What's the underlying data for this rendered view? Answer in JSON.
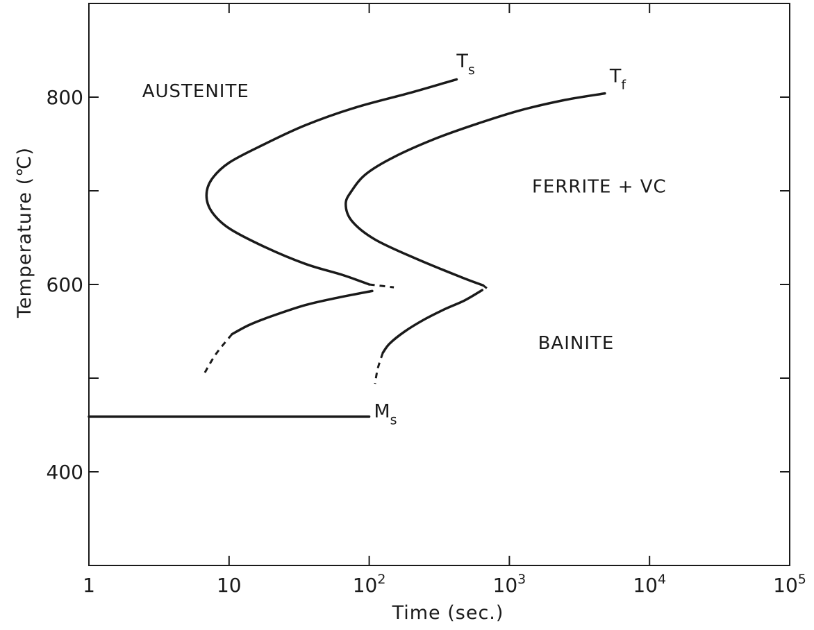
{
  "chart_data": {
    "type": "line",
    "xlabel": "Time (sec.)",
    "ylabel": "Temperature (℃)",
    "x_scale": "log",
    "xlim": [
      1,
      100000
    ],
    "ylim": [
      300,
      900
    ],
    "grid": false,
    "x_ticks": [
      {
        "value": 1,
        "base": "1",
        "exp": ""
      },
      {
        "value": 10,
        "base": "10",
        "exp": ""
      },
      {
        "value": 100,
        "base": "10",
        "exp": "2"
      },
      {
        "value": 1000,
        "base": "10",
        "exp": "3"
      },
      {
        "value": 10000,
        "base": "10",
        "exp": "4"
      },
      {
        "value": 100000,
        "base": "10",
        "exp": "5"
      }
    ],
    "y_ticks": [
      {
        "value": 400,
        "label": "400"
      },
      {
        "value": 500,
        "label": ""
      },
      {
        "value": 600,
        "label": "600"
      },
      {
        "value": 700,
        "label": ""
      },
      {
        "value": 800,
        "label": "800"
      }
    ],
    "region_labels": [
      {
        "text": "AUSTENITE",
        "x": 2.4,
        "y": 800
      },
      {
        "text": "FERRITE + VC",
        "x": 1450,
        "y": 698
      },
      {
        "text": "BAINITE",
        "x": 1600,
        "y": 531
      }
    ],
    "curve_labels": [
      {
        "main": "T",
        "sub": "s",
        "x": 420,
        "y": 832
      },
      {
        "main": "T",
        "sub": "f",
        "x": 5200,
        "y": 816
      },
      {
        "main": "M",
        "sub": "s",
        "x": 108,
        "y": 458
      }
    ],
    "series": [
      {
        "label": "Ts",
        "solid": [
          [
            420,
            819
          ],
          [
            200,
            805
          ],
          [
            80,
            789
          ],
          [
            35,
            770
          ],
          [
            18,
            750
          ],
          [
            10,
            730
          ],
          [
            7.5,
            712
          ],
          [
            6.9,
            695
          ],
          [
            7.5,
            678
          ],
          [
            10,
            660
          ],
          [
            18,
            640
          ],
          [
            35,
            622
          ],
          [
            65,
            610
          ],
          [
            100,
            600
          ]
        ],
        "dashed": [
          [
            100,
            600
          ],
          [
            150,
            597
          ]
        ]
      },
      {
        "label": "Ts-lower",
        "solid": [
          [
            105,
            593
          ],
          [
            60,
            586
          ],
          [
            35,
            578
          ],
          [
            20,
            566
          ],
          [
            14,
            557
          ],
          [
            10.5,
            547
          ]
        ],
        "dashed": [
          [
            10.5,
            547
          ],
          [
            8,
            525
          ],
          [
            6.5,
            502
          ]
        ]
      },
      {
        "label": "Tf",
        "solid": [
          [
            4800,
            804
          ],
          [
            2500,
            797
          ],
          [
            1200,
            786
          ],
          [
            600,
            772
          ],
          [
            300,
            756
          ],
          [
            150,
            736
          ],
          [
            95,
            718
          ],
          [
            75,
            700
          ],
          [
            68,
            686
          ],
          [
            75,
            668
          ],
          [
            110,
            648
          ],
          [
            220,
            627
          ],
          [
            450,
            608
          ],
          [
            650,
            599
          ]
        ],
        "dashed": [
          [
            650,
            599
          ],
          [
            690,
            596
          ]
        ]
      },
      {
        "label": "Tf-lower",
        "solid": [
          [
            640,
            594
          ],
          [
            480,
            583
          ],
          [
            350,
            574
          ],
          [
            250,
            563
          ],
          [
            180,
            550
          ],
          [
            140,
            537
          ],
          [
            125,
            527
          ]
        ],
        "dashed": [
          [
            125,
            527
          ],
          [
            115,
            510
          ],
          [
            110,
            494
          ]
        ]
      },
      {
        "label": "Ms",
        "solid": [
          [
            1,
            459
          ],
          [
            100,
            459
          ]
        ],
        "dashed": []
      }
    ]
  }
}
